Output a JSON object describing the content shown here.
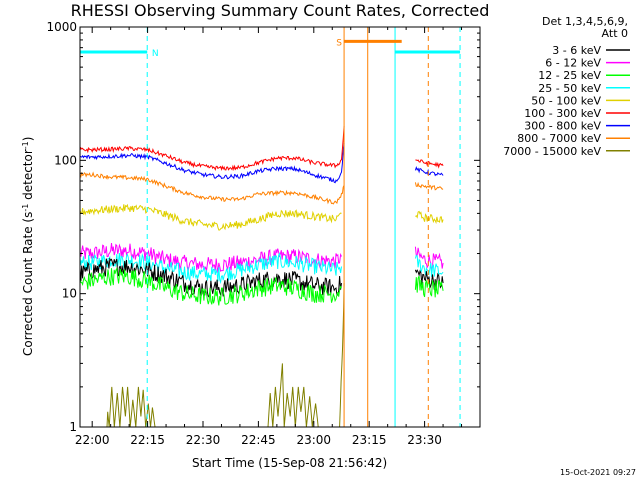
{
  "chart_data": {
    "type": "line",
    "title": "RHESSI Observing Summary Count Rates, Corrected",
    "xlabel": "Start Time (15-Sep-08 21:56:42)",
    "ylabel_main": "Corrected Count Rate (s",
    "ylabel_sup1": "-1",
    "ylabel_mid": " detector",
    "ylabel_sup2": "-1",
    "ylabel_end": ")",
    "yscale": "log",
    "ylim": [
      1,
      1000
    ],
    "y_ticks": [
      {
        "v": 1,
        "label": "1"
      },
      {
        "v": 10,
        "label": "10"
      },
      {
        "v": 100,
        "label": "100"
      },
      {
        "v": 1000,
        "label": "1000"
      }
    ],
    "x_units": "minutes",
    "xlim": [
      1316.7,
      1425
    ],
    "x_ticks": [
      {
        "v": 1320,
        "label": "22:00"
      },
      {
        "v": 1335,
        "label": "22:15"
      },
      {
        "v": 1350,
        "label": "22:30"
      },
      {
        "v": 1365,
        "label": "22:45"
      },
      {
        "v": 1380,
        "label": "23:00"
      },
      {
        "v": 1395,
        "label": "23:15"
      },
      {
        "v": 1410,
        "label": "23:30"
      }
    ],
    "legend_header": [
      "Det 1,3,4,5,6,9,",
      "Att 0"
    ],
    "legend_placement": "outside-right",
    "flags": [
      {
        "label": "N",
        "t0": 1316.7,
        "t1": 1334.9,
        "y": 650,
        "color": "#00ffff"
      },
      {
        "label": "",
        "t0": 1402,
        "t1": 1419.6,
        "y": 650,
        "color": "#00ffff"
      },
      {
        "label": "S",
        "t0": 1388.2,
        "t1": 1403.8,
        "y": 780,
        "color": "#ff8000"
      }
    ],
    "vlines": [
      {
        "t": 1316.7,
        "color": "#00ffff",
        "dash": false
      },
      {
        "t": 1334.9,
        "color": "#00ffff",
        "dash": true
      },
      {
        "t": 1402,
        "color": "#00ffff",
        "dash": false
      },
      {
        "t": 1419.6,
        "color": "#00ffff",
        "dash": true
      },
      {
        "t": 1388.2,
        "color": "#ff8000",
        "dash": false
      },
      {
        "t": 1394.6,
        "color": "#ff8000",
        "dash": false
      },
      {
        "t": 1411,
        "color": "#ff8000",
        "dash": true
      }
    ],
    "series": [
      {
        "name": "3 - 6 keV",
        "color": "#000000",
        "noise": 0.07,
        "segments": [
          [
            [
              1316.7,
              14
            ],
            [
              1320,
              15
            ],
            [
              1325,
              16
            ],
            [
              1330,
              16
            ],
            [
              1335,
              15
            ],
            [
              1340,
              13.5
            ],
            [
              1345,
              12
            ],
            [
              1350,
              11
            ],
            [
              1355,
              11
            ],
            [
              1360,
              11.5
            ],
            [
              1365,
              12.5
            ],
            [
              1370,
              13
            ],
            [
              1375,
              12.5
            ],
            [
              1380,
              11.5
            ],
            [
              1386,
              11
            ],
            [
              1387.5,
              12
            ]
          ],
          [
            [
              1407.5,
              14.5
            ],
            [
              1410,
              13
            ],
            [
              1415,
              12
            ]
          ]
        ]
      },
      {
        "name": "6 - 12 keV",
        "color": "#ff00ff",
        "noise": 0.06,
        "segments": [
          [
            [
              1316.7,
              20
            ],
            [
              1320,
              20
            ],
            [
              1325,
              21
            ],
            [
              1330,
              21
            ],
            [
              1335,
              20
            ],
            [
              1340,
              18
            ],
            [
              1345,
              17
            ],
            [
              1350,
              16.5
            ],
            [
              1355,
              16.5
            ],
            [
              1360,
              17
            ],
            [
              1365,
              18
            ],
            [
              1370,
              19
            ],
            [
              1375,
              19
            ],
            [
              1380,
              18
            ],
            [
              1386,
              17.5
            ],
            [
              1387.5,
              19
            ]
          ],
          [
            [
              1407.5,
              20
            ],
            [
              1410,
              18
            ],
            [
              1415,
              17
            ]
          ]
        ]
      },
      {
        "name": "12 - 25 keV",
        "color": "#00ff00",
        "noise": 0.07,
        "segments": [
          [
            [
              1316.7,
              12
            ],
            [
              1320,
              12.5
            ],
            [
              1325,
              13.5
            ],
            [
              1330,
              13.5
            ],
            [
              1335,
              12.5
            ],
            [
              1340,
              11
            ],
            [
              1345,
              10
            ],
            [
              1350,
              9.5
            ],
            [
              1355,
              9.5
            ],
            [
              1360,
              10
            ],
            [
              1365,
              11
            ],
            [
              1370,
              11.5
            ],
            [
              1375,
              11
            ],
            [
              1380,
              10
            ],
            [
              1386,
              10
            ],
            [
              1387.5,
              11
            ]
          ],
          [
            [
              1407.5,
              12
            ],
            [
              1410,
              11
            ],
            [
              1415,
              10.5
            ]
          ]
        ]
      },
      {
        "name": "25 - 50 keV",
        "color": "#00ffff",
        "noise": 0.06,
        "segments": [
          [
            [
              1316.7,
              17
            ],
            [
              1320,
              17
            ],
            [
              1325,
              18
            ],
            [
              1330,
              18
            ],
            [
              1335,
              17
            ],
            [
              1340,
              15.5
            ],
            [
              1345,
              14.5
            ],
            [
              1350,
              14
            ],
            [
              1355,
              14
            ],
            [
              1360,
              15
            ],
            [
              1365,
              16.5
            ],
            [
              1370,
              17.5
            ],
            [
              1375,
              17
            ],
            [
              1380,
              16
            ],
            [
              1386,
              15
            ],
            [
              1387.5,
              16
            ]
          ],
          [
            [
              1407.5,
              17.5
            ],
            [
              1410,
              15.5
            ],
            [
              1415,
              14.5
            ]
          ]
        ]
      },
      {
        "name": "50 - 100 keV",
        "color": "#e0d000",
        "noise": 0.03,
        "segments": [
          [
            [
              1316.7,
              41
            ],
            [
              1320,
              42
            ],
            [
              1325,
              43
            ],
            [
              1330,
              44
            ],
            [
              1335,
              43
            ],
            [
              1340,
              39
            ],
            [
              1345,
              35
            ],
            [
              1350,
              33
            ],
            [
              1355,
              32
            ],
            [
              1360,
              33
            ],
            [
              1365,
              36
            ],
            [
              1370,
              40
            ],
            [
              1375,
              40
            ],
            [
              1380,
              38
            ],
            [
              1386,
              36
            ],
            [
              1387.5,
              40
            ]
          ],
          [
            [
              1407.5,
              40
            ],
            [
              1410,
              37
            ],
            [
              1415,
              36
            ]
          ]
        ]
      },
      {
        "name": "100 - 300 keV",
        "color": "#ff0000",
        "noise": 0.015,
        "segments": [
          [
            [
              1316.7,
              120
            ],
            [
              1320,
              120
            ],
            [
              1325,
              121
            ],
            [
              1330,
              123
            ],
            [
              1335,
              120
            ],
            [
              1340,
              108
            ],
            [
              1345,
              96
            ],
            [
              1350,
              90
            ],
            [
              1355,
              87
            ],
            [
              1360,
              88
            ],
            [
              1365,
              96
            ],
            [
              1370,
              104
            ],
            [
              1375,
              104
            ],
            [
              1380,
              96
            ],
            [
              1386,
              91
            ],
            [
              1387.5,
              100
            ],
            [
              1388,
              150
            ],
            [
              1388.2,
              180
            ]
          ],
          [
            [
              1407.5,
              101
            ],
            [
              1410,
              96
            ],
            [
              1415,
              91
            ]
          ]
        ]
      },
      {
        "name": "300 - 800 keV",
        "color": "#0000ff",
        "noise": 0.015,
        "segments": [
          [
            [
              1316.7,
              106
            ],
            [
              1320,
              106
            ],
            [
              1325,
              107
            ],
            [
              1330,
              109
            ],
            [
              1335,
              106
            ],
            [
              1340,
              95
            ],
            [
              1345,
              84
            ],
            [
              1350,
              78
            ],
            [
              1355,
              75
            ],
            [
              1360,
              76
            ],
            [
              1365,
              83
            ],
            [
              1370,
              87
            ],
            [
              1375,
              86
            ],
            [
              1380,
              78
            ],
            [
              1386,
              70
            ],
            [
              1387.5,
              80
            ],
            [
              1388,
              120
            ],
            [
              1388.2,
              135
            ]
          ],
          [
            [
              1407.5,
              86
            ],
            [
              1410,
              82
            ],
            [
              1415,
              77
            ]
          ]
        ]
      },
      {
        "name": "800 - 7000 keV",
        "color": "#ff8000",
        "noise": 0.015,
        "segments": [
          [
            [
              1316.7,
              78
            ],
            [
              1320,
              78
            ],
            [
              1325,
              75
            ],
            [
              1330,
              74
            ],
            [
              1335,
              72
            ],
            [
              1340,
              64
            ],
            [
              1345,
              57
            ],
            [
              1350,
              53
            ],
            [
              1355,
              51
            ],
            [
              1360,
              51
            ],
            [
              1365,
              56
            ],
            [
              1370,
              57
            ],
            [
              1375,
              57
            ],
            [
              1380,
              53
            ],
            [
              1386,
              48
            ],
            [
              1387.5,
              55
            ],
            [
              1388.2,
              65
            ]
          ],
          [
            [
              1407.5,
              66
            ],
            [
              1410,
              64
            ],
            [
              1415,
              61
            ]
          ]
        ]
      },
      {
        "name": "7000 - 15000 keV",
        "color": "#808000",
        "noise": 0,
        "segments": [
          [
            [
              1316.7,
              1
            ],
            [
              1324,
              1
            ],
            [
              1324.2,
              1.3
            ],
            [
              1324.6,
              1
            ],
            [
              1325.3,
              2
            ],
            [
              1326,
              1
            ],
            [
              1326.8,
              1.8
            ],
            [
              1327.5,
              1
            ],
            [
              1328.2,
              2
            ],
            [
              1329,
              1.2
            ],
            [
              1329.6,
              2
            ],
            [
              1330.3,
              1
            ],
            [
              1331,
              1.6
            ],
            [
              1331.8,
              1
            ],
            [
              1332.5,
              2
            ],
            [
              1333.2,
              1.2
            ],
            [
              1333.8,
              1.9
            ],
            [
              1334.5,
              1
            ],
            [
              1335.2,
              1.5
            ],
            [
              1335.8,
              1
            ],
            [
              1336.3,
              1.4
            ],
            [
              1337,
              1
            ],
            [
              1367.6,
              1
            ],
            [
              1368.2,
              1.8
            ],
            [
              1368.9,
              1
            ],
            [
              1369.6,
              2
            ],
            [
              1370.3,
              1.2
            ],
            [
              1371,
              2
            ],
            [
              1371.5,
              3
            ],
            [
              1372,
              1
            ],
            [
              1372.8,
              1.8
            ],
            [
              1373.6,
              1.2
            ],
            [
              1374.3,
              2
            ],
            [
              1375,
              1
            ],
            [
              1375.8,
              2
            ],
            [
              1376.5,
              1.3
            ],
            [
              1377.3,
              2
            ],
            [
              1378,
              1
            ],
            [
              1378.9,
              1.7
            ],
            [
              1379.6,
              1
            ],
            [
              1380.5,
              1.5
            ],
            [
              1381.2,
              1
            ],
            [
              1387,
              1
            ],
            [
              1387.4,
              2.2
            ],
            [
              1387.8,
              4
            ],
            [
              1388.1,
              8
            ],
            [
              1388.2,
              12
            ]
          ]
        ]
      }
    ]
  },
  "timestamp": "15-Oct-2021 09:27"
}
